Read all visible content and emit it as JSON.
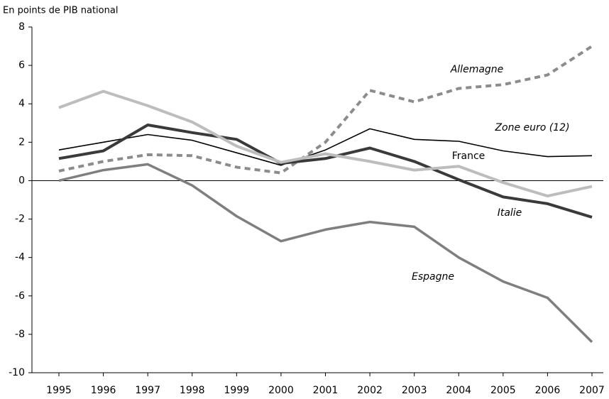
{
  "chart_data": {
    "type": "line",
    "title": "En points de PIB national",
    "categories": [
      "1995",
      "1996",
      "1997",
      "1998",
      "1999",
      "2000",
      "2001",
      "2002",
      "2003",
      "2004",
      "2005",
      "2006",
      "2007"
    ],
    "ylim": [
      -10,
      8
    ],
    "yticks": [
      -10,
      -8,
      -6,
      -4,
      -2,
      0,
      2,
      4,
      6,
      8
    ],
    "series": [
      {
        "name": "Allemagne",
        "color": "#8c8c8c",
        "dash": true,
        "values": [
          0.5,
          1.0,
          1.35,
          1.3,
          0.7,
          0.4,
          2.0,
          4.7,
          4.1,
          4.8,
          5.0,
          5.5,
          7.0
        ]
      },
      {
        "name": "Zone euro (12)",
        "color": "#000000",
        "values": [
          1.6,
          2.0,
          2.4,
          2.1,
          1.45,
          0.8,
          1.6,
          2.7,
          2.15,
          2.05,
          1.55,
          1.25,
          1.3
        ]
      },
      {
        "name": "France",
        "color": "#3a3a3a",
        "values": [
          1.15,
          1.55,
          2.9,
          2.5,
          2.15,
          0.9,
          1.15,
          1.7,
          1.0,
          0.05,
          -0.85,
          -1.2,
          -1.9
        ]
      },
      {
        "name": "Italie",
        "color": "#bdbdbd",
        "values": [
          3.8,
          4.65,
          3.9,
          3.05,
          1.8,
          0.95,
          1.4,
          1.0,
          0.55,
          0.75,
          -0.1,
          -0.8,
          -0.3
        ]
      },
      {
        "name": "Espagne",
        "color": "#7f7f7f",
        "values": [
          0.0,
          0.55,
          0.85,
          -0.25,
          -1.85,
          -3.15,
          -2.55,
          -2.15,
          -2.4,
          -4.0,
          -5.25,
          -6.1,
          -8.4
        ]
      }
    ]
  }
}
